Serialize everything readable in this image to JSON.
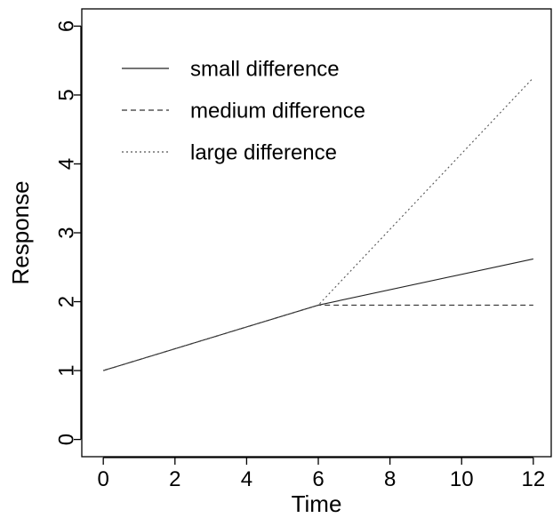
{
  "chart_data": {
    "type": "line",
    "xlabel": "Time",
    "ylabel": "Response",
    "xlim": [
      -0.6,
      12.5
    ],
    "ylim": [
      -0.25,
      6.25
    ],
    "xticks": [
      0,
      2,
      4,
      6,
      8,
      10,
      12
    ],
    "yticks": [
      0,
      1,
      2,
      3,
      4,
      5,
      6
    ],
    "grid": false,
    "legend_position": "top-left",
    "series": [
      {
        "name": "small difference",
        "style": "solid",
        "x": [
          0,
          6,
          12
        ],
        "y": [
          1.0,
          1.95,
          2.62
        ]
      },
      {
        "name": "medium difference",
        "style": "dashed",
        "x": [
          0,
          6,
          12
        ],
        "y": [
          1.0,
          1.95,
          1.95
        ]
      },
      {
        "name": "large difference",
        "style": "dotted",
        "x": [
          0,
          6,
          12
        ],
        "y": [
          1.0,
          1.95,
          5.25
        ]
      }
    ]
  }
}
